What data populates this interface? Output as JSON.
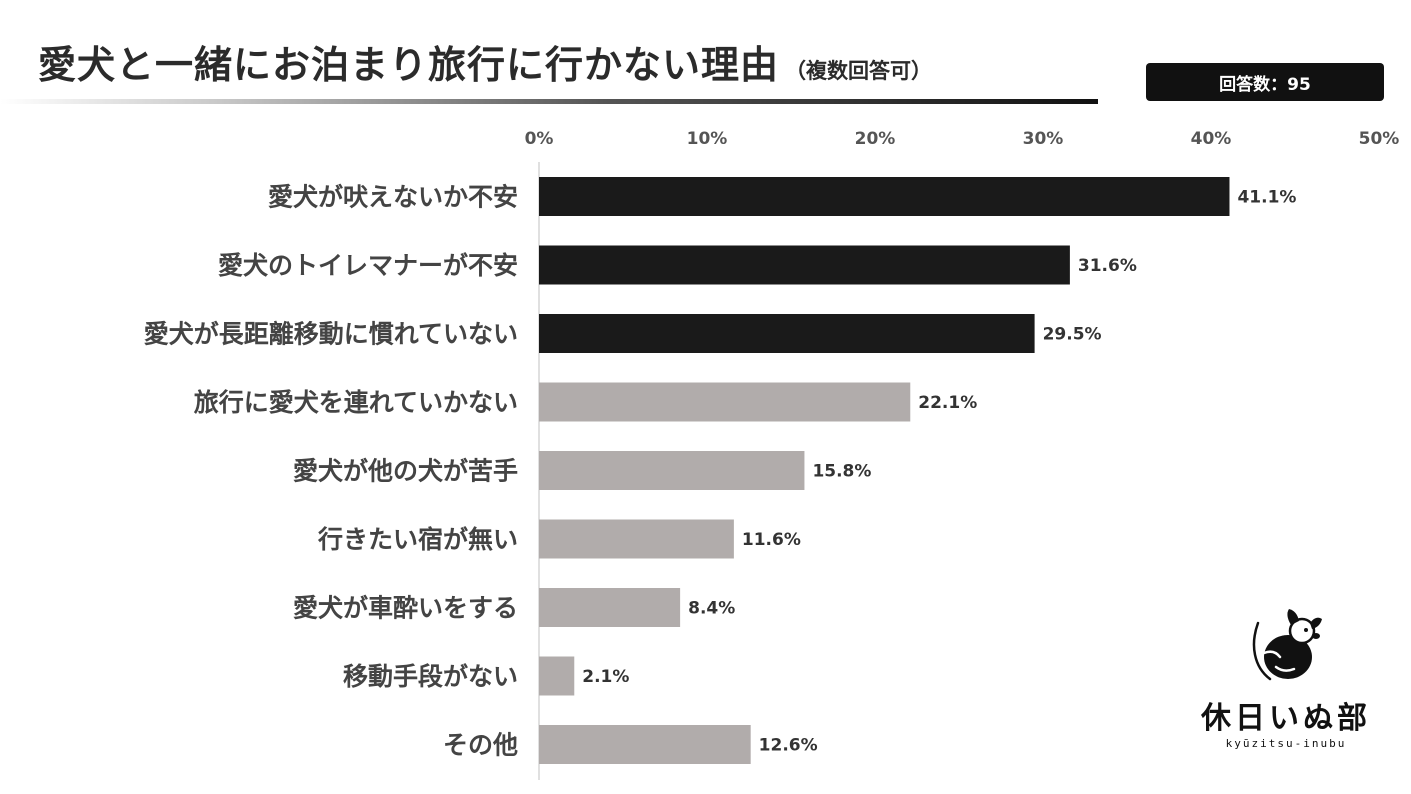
{
  "header": {
    "title": "愛犬と一緒にお泊まり旅行に行かない理由",
    "subtitle": "（複数回答可）",
    "respondents": "回答数：95"
  },
  "chart_data": {
    "type": "bar",
    "orientation": "horizontal",
    "categories": [
      "愛犬が吠えないか不安",
      "愛犬のトイレマナーが不安",
      "愛犬が長距離移動に慣れていない",
      "旅行に愛犬を連れていかない",
      "愛犬が他の犬が苦手",
      "行きたい宿が無い",
      "愛犬が車酔いをする",
      "移動手段がない",
      "その他"
    ],
    "values": [
      41.1,
      31.6,
      29.5,
      22.1,
      15.8,
      11.6,
      8.4,
      2.1,
      12.6
    ],
    "value_labels": [
      "41.1%",
      "31.6%",
      "29.5%",
      "22.1%",
      "15.8%",
      "11.6%",
      "8.4%",
      "2.1%",
      "12.6%"
    ],
    "xlim": [
      0,
      50
    ],
    "xticks": [
      "0%",
      "10%",
      "20%",
      "30%",
      "40%",
      "50%"
    ],
    "grid": false,
    "bar_colors": [
      "#1a1a1a",
      "#1a1a1a",
      "#1a1a1a",
      "#b1acab",
      "#b1acab",
      "#b1acab",
      "#b1acab",
      "#b1acab",
      "#b1acab"
    ],
    "axis_line_color": "#d6d6d6"
  },
  "logo": {
    "name": "休日いぬ部",
    "sub": "kyūzitsu-inubu"
  }
}
